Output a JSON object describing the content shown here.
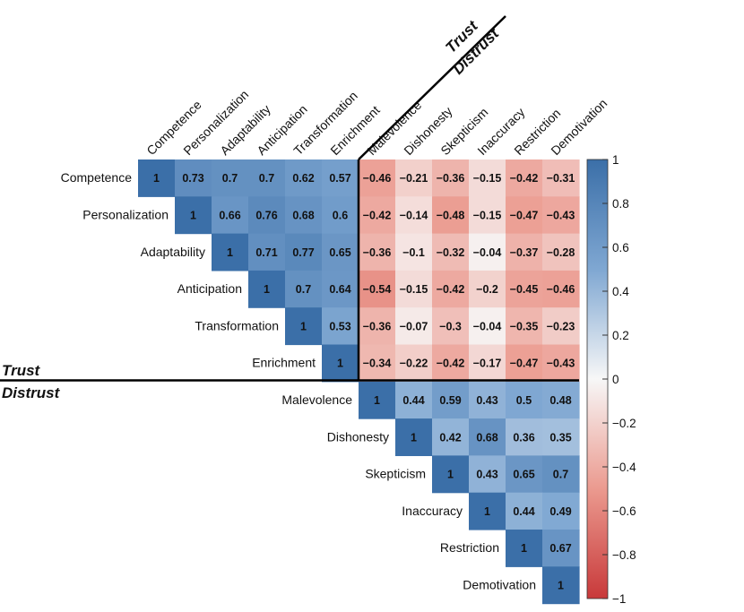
{
  "chart_data": {
    "type": "heatmap",
    "title": "",
    "variables": [
      "Competence",
      "Personalization",
      "Adaptability",
      "Anticipation",
      "Transformation",
      "Enrichment",
      "Malevolence",
      "Dishonesty",
      "Skepticism",
      "Inaccuracy",
      "Restriction",
      "Demotivation"
    ],
    "matrix": [
      [
        "1",
        "0.73",
        "0.7",
        "0.7",
        "0.62",
        "0.57",
        "−0.46",
        "−0.21",
        "−0.36",
        "−0.15",
        "−0.42",
        "−0.31"
      ],
      [
        null,
        "1",
        "0.66",
        "0.76",
        "0.68",
        "0.6",
        "−0.42",
        "−0.14",
        "−0.48",
        "−0.15",
        "−0.47",
        "−0.43"
      ],
      [
        null,
        null,
        "1",
        "0.71",
        "0.77",
        "0.65",
        "−0.36",
        "−0.1",
        "−0.32",
        "−0.04",
        "−0.37",
        "−0.28"
      ],
      [
        null,
        null,
        null,
        "1",
        "0.7",
        "0.64",
        "−0.54",
        "−0.15",
        "−0.42",
        "−0.2",
        "−0.45",
        "−0.46"
      ],
      [
        null,
        null,
        null,
        null,
        "1",
        "0.53",
        "−0.36",
        "−0.07",
        "−0.3",
        "−0.04",
        "−0.35",
        "−0.23"
      ],
      [
        null,
        null,
        null,
        null,
        null,
        "1",
        "−0.34",
        "−0.22",
        "−0.42",
        "−0.17",
        "−0.47",
        "−0.43"
      ],
      [
        null,
        null,
        null,
        null,
        null,
        null,
        "1",
        "0.44",
        "0.59",
        "0.43",
        "0.5",
        "0.48"
      ],
      [
        null,
        null,
        null,
        null,
        null,
        null,
        null,
        "1",
        "0.42",
        "0.68",
        "0.36",
        "0.35"
      ],
      [
        null,
        null,
        null,
        null,
        null,
        null,
        null,
        null,
        "1",
        "0.43",
        "0.65",
        "0.7"
      ],
      [
        null,
        null,
        null,
        null,
        null,
        null,
        null,
        null,
        null,
        "1",
        "0.44",
        "0.49"
      ],
      [
        null,
        null,
        null,
        null,
        null,
        null,
        null,
        null,
        null,
        null,
        "1",
        "0.67"
      ],
      [
        null,
        null,
        null,
        null,
        null,
        null,
        null,
        null,
        null,
        null,
        null,
        "1"
      ]
    ],
    "groups": {
      "row_divider_top": "Trust",
      "row_divider_bottom": "Distrust",
      "corner_top": "Trust",
      "corner_bottom": "Distrust"
    },
    "colorbar": {
      "range": [
        -1,
        1
      ],
      "ticks": [
        "1",
        "0.8",
        "0.6",
        "0.4",
        "0.2",
        "0",
        "−0.2",
        "−0.4",
        "−0.6",
        "−0.8",
        "−1"
      ],
      "positive_color": "#3b6fa8",
      "neutral_color": "#f7f7f7",
      "negative_color": "#c8393a"
    }
  }
}
